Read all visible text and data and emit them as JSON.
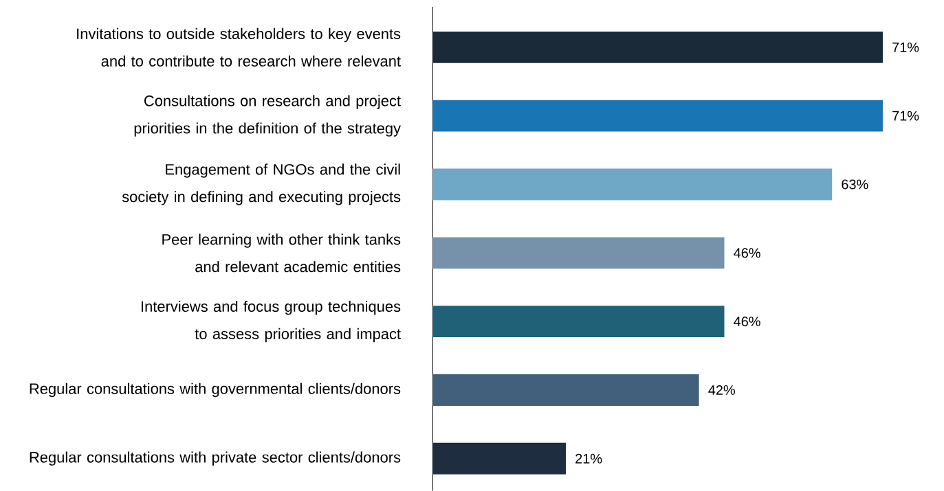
{
  "chart_data": {
    "type": "bar",
    "orientation": "horizontal",
    "categories": [
      "Invitations to outside stakeholders to key events and to contribute to research where relevant",
      "Consultations on research and project priorities in the definition of the strategy",
      "Engagement of NGOs and the civil society in defining and executing projects",
      "Peer learning with other think tanks and relevant academic entities",
      "Interviews and focus group techniques to assess priorities and impact",
      "Regular consultations with governmental clients/donors",
      "Regular consultations with private sector clients/donors"
    ],
    "values": [
      71,
      71,
      63,
      46,
      46,
      42,
      21
    ],
    "value_labels": [
      "71%",
      "71%",
      "63%",
      "46%",
      "46%",
      "42%",
      "21%"
    ],
    "colors": [
      "#1a2a38",
      "#1a75b4",
      "#6fa8c6",
      "#7592aa",
      "#216178",
      "#42607c",
      "#1e2d3f"
    ],
    "tick_labels": "y"
  }
}
